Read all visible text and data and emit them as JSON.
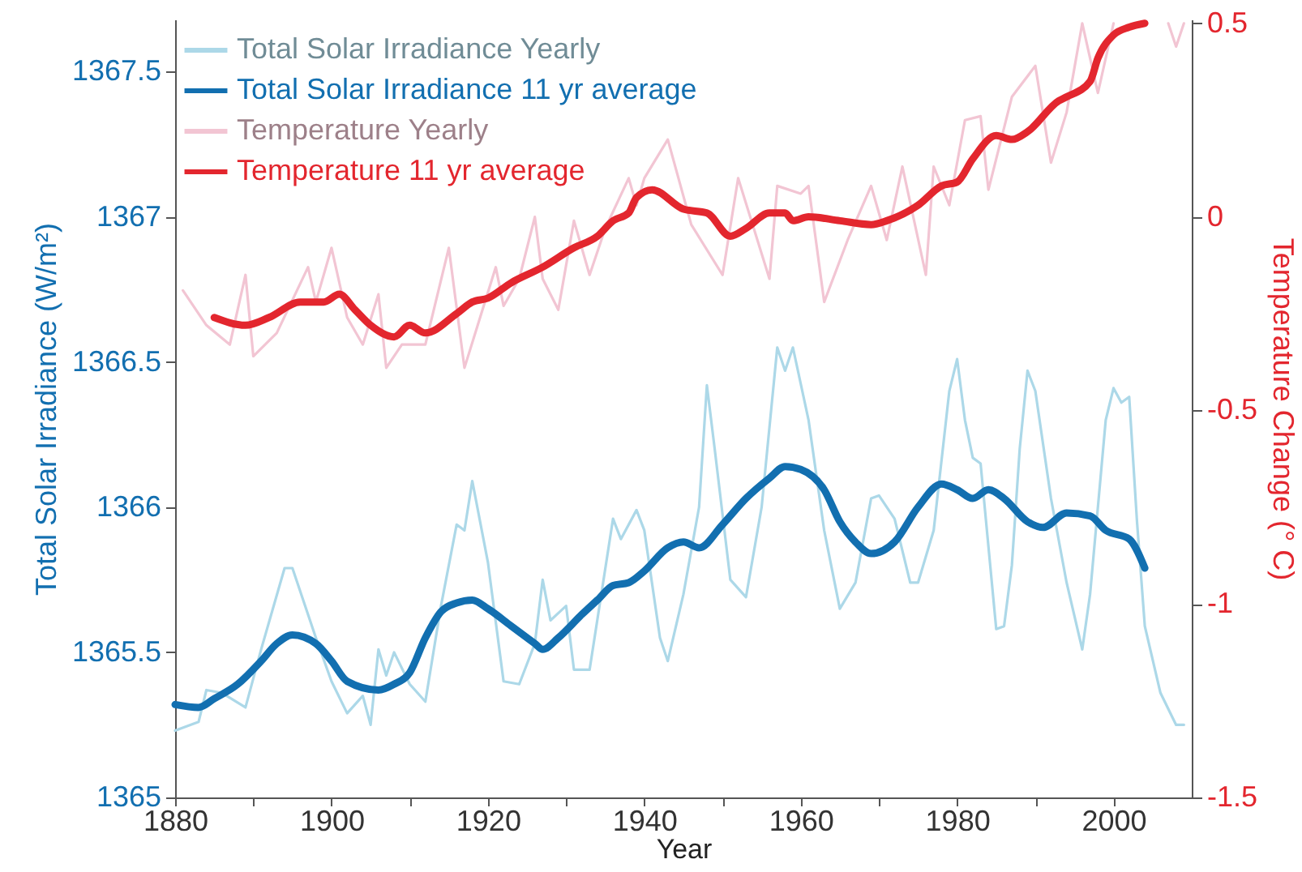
{
  "chart_data": {
    "type": "line",
    "xlabel": "Year",
    "ylabel": "Total Solar Irradiance (W/m²)",
    "y2label": "Temperature Change (° C)",
    "xlim": [
      1880,
      2010
    ],
    "xticks": [
      1880,
      {
        "value": 1890,
        "label": null
      },
      1900,
      {
        "value": 1910,
        "label": null
      },
      1920,
      {
        "value": 1930,
        "label": null
      },
      1940,
      {
        "value": 1950,
        "label": null
      },
      1960,
      {
        "value": 1970,
        "label": null
      },
      1980,
      {
        "value": 1990,
        "label": null
      },
      2000
    ],
    "ylim": [
      1365,
      1367.68
    ],
    "yticks": [
      1365,
      1365.5,
      1366,
      1366.5,
      1367,
      1367.5
    ],
    "y2lim": [
      -1.5,
      0.51
    ],
    "y2ticks": [
      -1.5,
      -1,
      -0.5,
      0,
      0.5
    ],
    "legend": "top left",
    "series": [
      {
        "name": "Total Solar Irradiance Yearly",
        "color": "#acd8e8",
        "x": [
          1880,
          1883,
          1884,
          1886,
          1889,
          1891,
          1894,
          1895,
          1898,
          1900,
          1902,
          1904,
          1905,
          1906,
          1907,
          1908,
          1910,
          1912,
          1914,
          1916,
          1917,
          1918,
          1920,
          1922,
          1924,
          1926,
          1927,
          1928,
          1930,
          1931,
          1933,
          1936,
          1937,
          1939,
          1940,
          1942,
          1943,
          1945,
          1947,
          1948,
          1949,
          1951,
          1953,
          1955,
          1957,
          1958,
          1959,
          1961,
          1963,
          1965,
          1967,
          1969,
          1970,
          1972,
          1974,
          1975,
          1977,
          1979,
          1980,
          1981,
          1982,
          1983,
          1985,
          1986,
          1987,
          1988,
          1989,
          1990,
          1992,
          1994,
          1996,
          1997,
          1999,
          2000,
          2001,
          2002,
          2003,
          2004,
          2006,
          2008,
          2009
        ],
        "values": [
          1365.23,
          1365.26,
          1365.37,
          1365.36,
          1365.31,
          1365.51,
          1365.79,
          1365.79,
          1365.55,
          1365.4,
          1365.29,
          1365.35,
          1365.25,
          1365.51,
          1365.42,
          1365.5,
          1365.39,
          1365.33,
          1365.66,
          1365.94,
          1365.92,
          1366.09,
          1365.81,
          1365.4,
          1365.39,
          1365.53,
          1365.75,
          1365.61,
          1365.66,
          1365.44,
          1365.44,
          1365.96,
          1365.89,
          1365.99,
          1365.92,
          1365.55,
          1365.47,
          1365.7,
          1366.0,
          1366.42,
          1366.2,
          1365.75,
          1365.69,
          1366.0,
          1366.55,
          1366.47,
          1366.55,
          1366.3,
          1365.92,
          1365.65,
          1365.74,
          1366.03,
          1366.04,
          1365.96,
          1365.74,
          1365.74,
          1365.92,
          1366.4,
          1366.51,
          1366.3,
          1366.17,
          1366.15,
          1365.58,
          1365.59,
          1365.8,
          1366.2,
          1366.47,
          1366.4,
          1366.03,
          1365.74,
          1365.51,
          1365.7,
          1366.3,
          1366.41,
          1366.36,
          1366.38,
          1365.95,
          1365.59,
          1365.36,
          1365.25,
          1365.25
        ]
      },
      {
        "name": "Total Solar Irradiance 11 yr average",
        "color": "#126fb0",
        "x": [
          1880,
          1883,
          1885,
          1888,
          1891,
          1893,
          1895,
          1898,
          1900,
          1902,
          1906,
          1908,
          1910,
          1912,
          1914,
          1916,
          1918,
          1920,
          1923,
          1926,
          1927,
          1929,
          1932,
          1934,
          1936,
          1938,
          1940,
          1943,
          1945,
          1947,
          1950,
          1953,
          1956,
          1958,
          1960,
          1963,
          1965,
          1967,
          1969,
          1972,
          1975,
          1978,
          1980,
          1982,
          1984,
          1986,
          1989,
          1991,
          1994,
          1997,
          1999,
          2002,
          2004
        ],
        "values": [
          1365.32,
          1365.31,
          1365.34,
          1365.39,
          1365.47,
          1365.53,
          1365.56,
          1365.53,
          1365.47,
          1365.4,
          1365.37,
          1365.39,
          1365.43,
          1365.55,
          1365.64,
          1365.67,
          1365.68,
          1365.65,
          1365.59,
          1365.53,
          1365.51,
          1365.55,
          1365.63,
          1365.68,
          1365.73,
          1365.74,
          1365.78,
          1365.86,
          1365.88,
          1365.86,
          1365.94,
          1366.03,
          1366.1,
          1366.14,
          1366.13,
          1366.06,
          1365.95,
          1365.88,
          1365.84,
          1365.88,
          1366.0,
          1366.08,
          1366.06,
          1366.03,
          1366.06,
          1366.03,
          1365.95,
          1365.93,
          1365.98,
          1365.97,
          1365.92,
          1365.89,
          1365.79
        ]
      },
      {
        "name": "Temperature Yearly",
        "color": "#f2c5d3",
        "axis": "y2",
        "x": [
          1881,
          1884,
          1887,
          1889,
          1890,
          1893,
          1897,
          1898,
          1900,
          1902,
          1904,
          1906,
          1907,
          1909,
          1912,
          1915,
          1917,
          1919,
          1921,
          1922,
          1924,
          1926,
          1927,
          1929,
          1931,
          1933,
          1935,
          1938,
          1939,
          1940,
          1943,
          1946,
          1950,
          1952,
          1956,
          1957,
          1960,
          1961,
          1963,
          1966,
          1969,
          1971,
          1973,
          1976,
          1977,
          1979,
          1981,
          1983,
          1984,
          1987,
          1990,
          1992,
          1994,
          1996,
          1998,
          2000,
          2001,
          2007,
          2008,
          2009
        ],
        "values": [
          -0.19,
          -0.28,
          -0.33,
          -0.15,
          -0.36,
          -0.3,
          -0.13,
          -0.22,
          -0.08,
          -0.26,
          -0.33,
          -0.2,
          -0.39,
          -0.33,
          -0.33,
          -0.08,
          -0.39,
          -0.26,
          -0.13,
          -0.23,
          -0.16,
          0,
          -0.16,
          -0.24,
          -0.01,
          -0.15,
          -0.03,
          0.1,
          0.03,
          0.1,
          0.2,
          -0.02,
          -0.15,
          0.1,
          -0.16,
          0.08,
          0.06,
          0.08,
          -0.22,
          -0.06,
          0.08,
          -0.06,
          0.13,
          -0.15,
          0.13,
          0.03,
          0.25,
          0.26,
          0.07,
          0.31,
          0.39,
          0.14,
          0.27,
          0.5,
          0.32,
          0.5,
          null,
          0.5,
          0.44,
          0.5
        ]
      },
      {
        "name": "Temperature 11 yr average",
        "color": "#e3262e",
        "axis": "y2",
        "x": [
          1885,
          1889,
          1892,
          1896,
          1899,
          1901,
          1903,
          1905,
          1908,
          1910,
          1912,
          1916,
          1918,
          1920,
          1923,
          1927,
          1931,
          1934,
          1936,
          1938,
          1939,
          1941,
          1945,
          1948,
          1951,
          1953,
          1956,
          1958,
          1959,
          1961,
          1965,
          1969,
          1971,
          1975,
          1978,
          1980,
          1982,
          1985,
          1987,
          1989,
          1993,
          1994,
          1997,
          1998,
          2000,
          2002,
          2004
        ],
        "values": [
          -0.26,
          -0.28,
          -0.26,
          -0.22,
          -0.22,
          -0.2,
          -0.24,
          -0.28,
          -0.31,
          -0.28,
          -0.3,
          -0.25,
          -0.22,
          -0.21,
          -0.17,
          -0.13,
          -0.08,
          -0.05,
          -0.01,
          0.01,
          0.05,
          0.07,
          0.02,
          0.01,
          -0.05,
          -0.03,
          0.01,
          0.01,
          -0.01,
          0,
          -0.01,
          -0.02,
          -0.01,
          0.03,
          0.08,
          0.09,
          0.15,
          0.21,
          0.2,
          0.22,
          0.3,
          0.31,
          0.35,
          0.41,
          0.47,
          0.49,
          0.5
        ]
      }
    ]
  }
}
